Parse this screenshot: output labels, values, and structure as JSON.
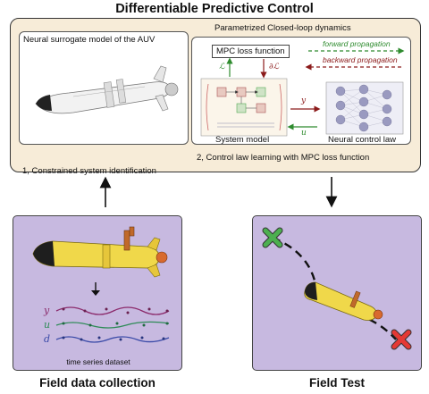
{
  "title": "Differentiable Predictive Control",
  "top_panel": {
    "left_label": "Neural surrogate model of the AUV",
    "step1": "1, Constrained system identification",
    "right_label": "Parametrized Closed-loop dynamics",
    "step2": "2, Control law learning with MPC loss function",
    "mpc_loss": "MPC loss function",
    "system_model": "System model",
    "neural_control_law": "Neural control law",
    "forward": "forward propagation",
    "backward": "backward propagation",
    "signal_y": "y",
    "signal_u": "u",
    "loss_symbol": "ℒ",
    "grad_symbol": "∂ℒ"
  },
  "left_bottom": {
    "series": [
      "y",
      "u",
      "d"
    ],
    "caption": "time series dataset",
    "title": "Field data collection"
  },
  "right_bottom": {
    "title": "Field Test"
  },
  "colors": {
    "panel_bg": "#f7ecd8",
    "purple_bg": "#c7b9e0",
    "forward": "#2e8b2e",
    "backward": "#8b1a1a",
    "start_marker": "#4caf50",
    "end_marker": "#e53935",
    "y_color": "#8b2a6b",
    "u_color": "#2e8b57",
    "d_color": "#3b4ba8"
  }
}
